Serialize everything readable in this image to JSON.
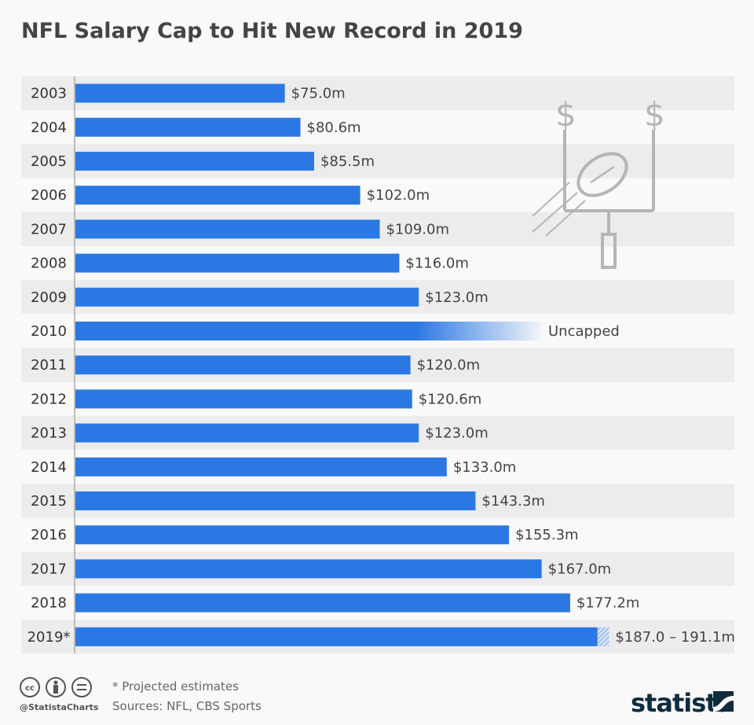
{
  "chart_data": {
    "type": "bar",
    "orientation": "horizontal",
    "title": "NFL Salary Cap to Hit New Record in 2019",
    "categories": [
      "2003",
      "2004",
      "2005",
      "2006",
      "2007",
      "2008",
      "2009",
      "2010",
      "2011",
      "2012",
      "2013",
      "2014",
      "2015",
      "2016",
      "2017",
      "2018",
      "2019*"
    ],
    "values": [
      75.0,
      80.6,
      85.5,
      102.0,
      109.0,
      116.0,
      123.0,
      null,
      120.0,
      120.6,
      123.0,
      133.0,
      143.3,
      155.3,
      167.0,
      177.2,
      187.0
    ],
    "range_high_2019": 191.1,
    "labels": [
      "$75.0m",
      "$80.6m",
      "$85.5m",
      "$102.0m",
      "$109.0m",
      "$116.0m",
      "$123.0m",
      "Uncapped",
      "$120.0m",
      "$120.6m",
      "$123.0m",
      "$133.0m",
      "$143.3m",
      "$155.3m",
      "$167.0m",
      "$177.2m",
      "$187.0 – 191.1m"
    ],
    "unit": "million USD",
    "xlim": [
      0,
      240
    ],
    "colors": {
      "bar": "#2b78e4",
      "range": "#8fb6ef",
      "row_alt": "#ececec",
      "text": "#444444"
    }
  },
  "footer": {
    "note": "* Projected estimates",
    "sources": "Sources: NFL, CBS Sports",
    "handle": "@StatistaCharts",
    "logo": "statista"
  },
  "icons": [
    "creative-commons-icon",
    "attribution-icon",
    "no-derivatives-icon",
    "football-goalpost-icon"
  ]
}
